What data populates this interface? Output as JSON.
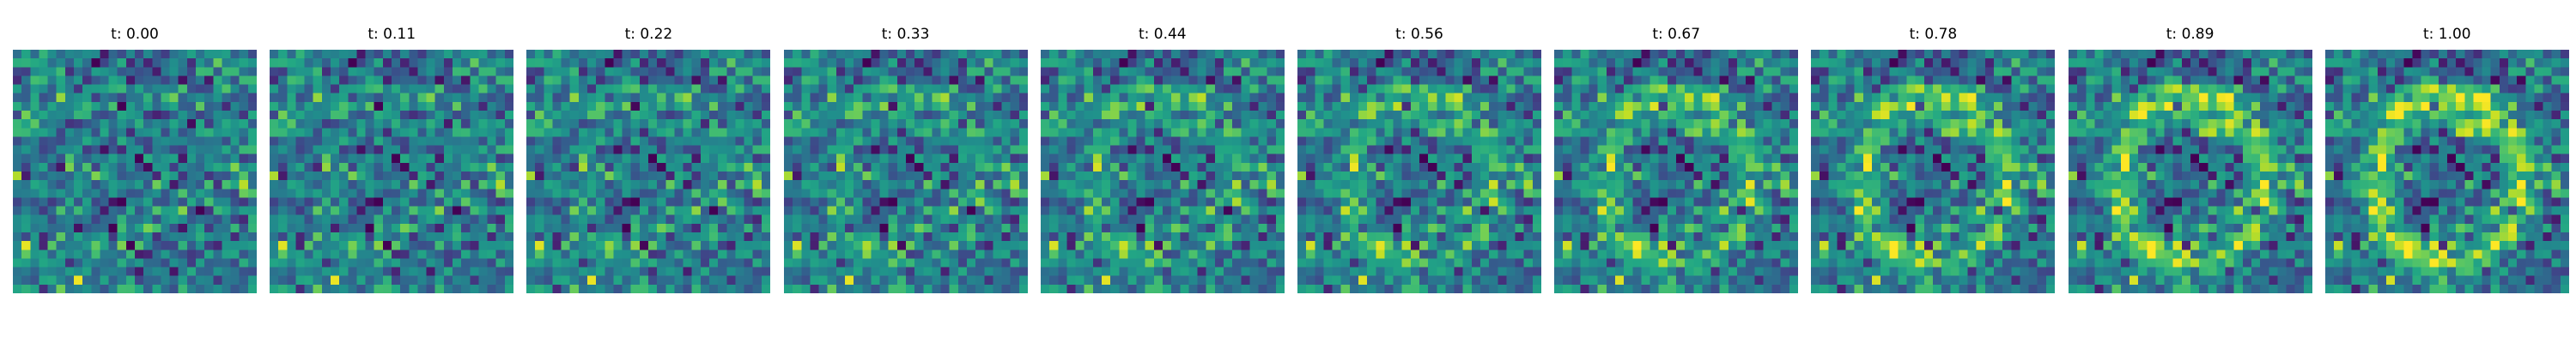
{
  "chart_data": {
    "type": "heatmap",
    "grid": [
      28,
      28
    ],
    "colormap": "viridis",
    "axes_visible": false,
    "panels": [
      {
        "title": "t: 0.00",
        "t": 0.0
      },
      {
        "title": "t: 0.11",
        "t": 0.11
      },
      {
        "title": "t: 0.22",
        "t": 0.22
      },
      {
        "title": "t: 0.33",
        "t": 0.33
      },
      {
        "title": "t: 0.44",
        "t": 0.44
      },
      {
        "title": "t: 0.56",
        "t": 0.56
      },
      {
        "title": "t: 0.67",
        "t": 0.67
      },
      {
        "title": "t: 0.78",
        "t": 0.78
      },
      {
        "title": "t: 0.89",
        "t": 0.89
      },
      {
        "title": "t: 1.00",
        "t": 1.0
      }
    ]
  }
}
